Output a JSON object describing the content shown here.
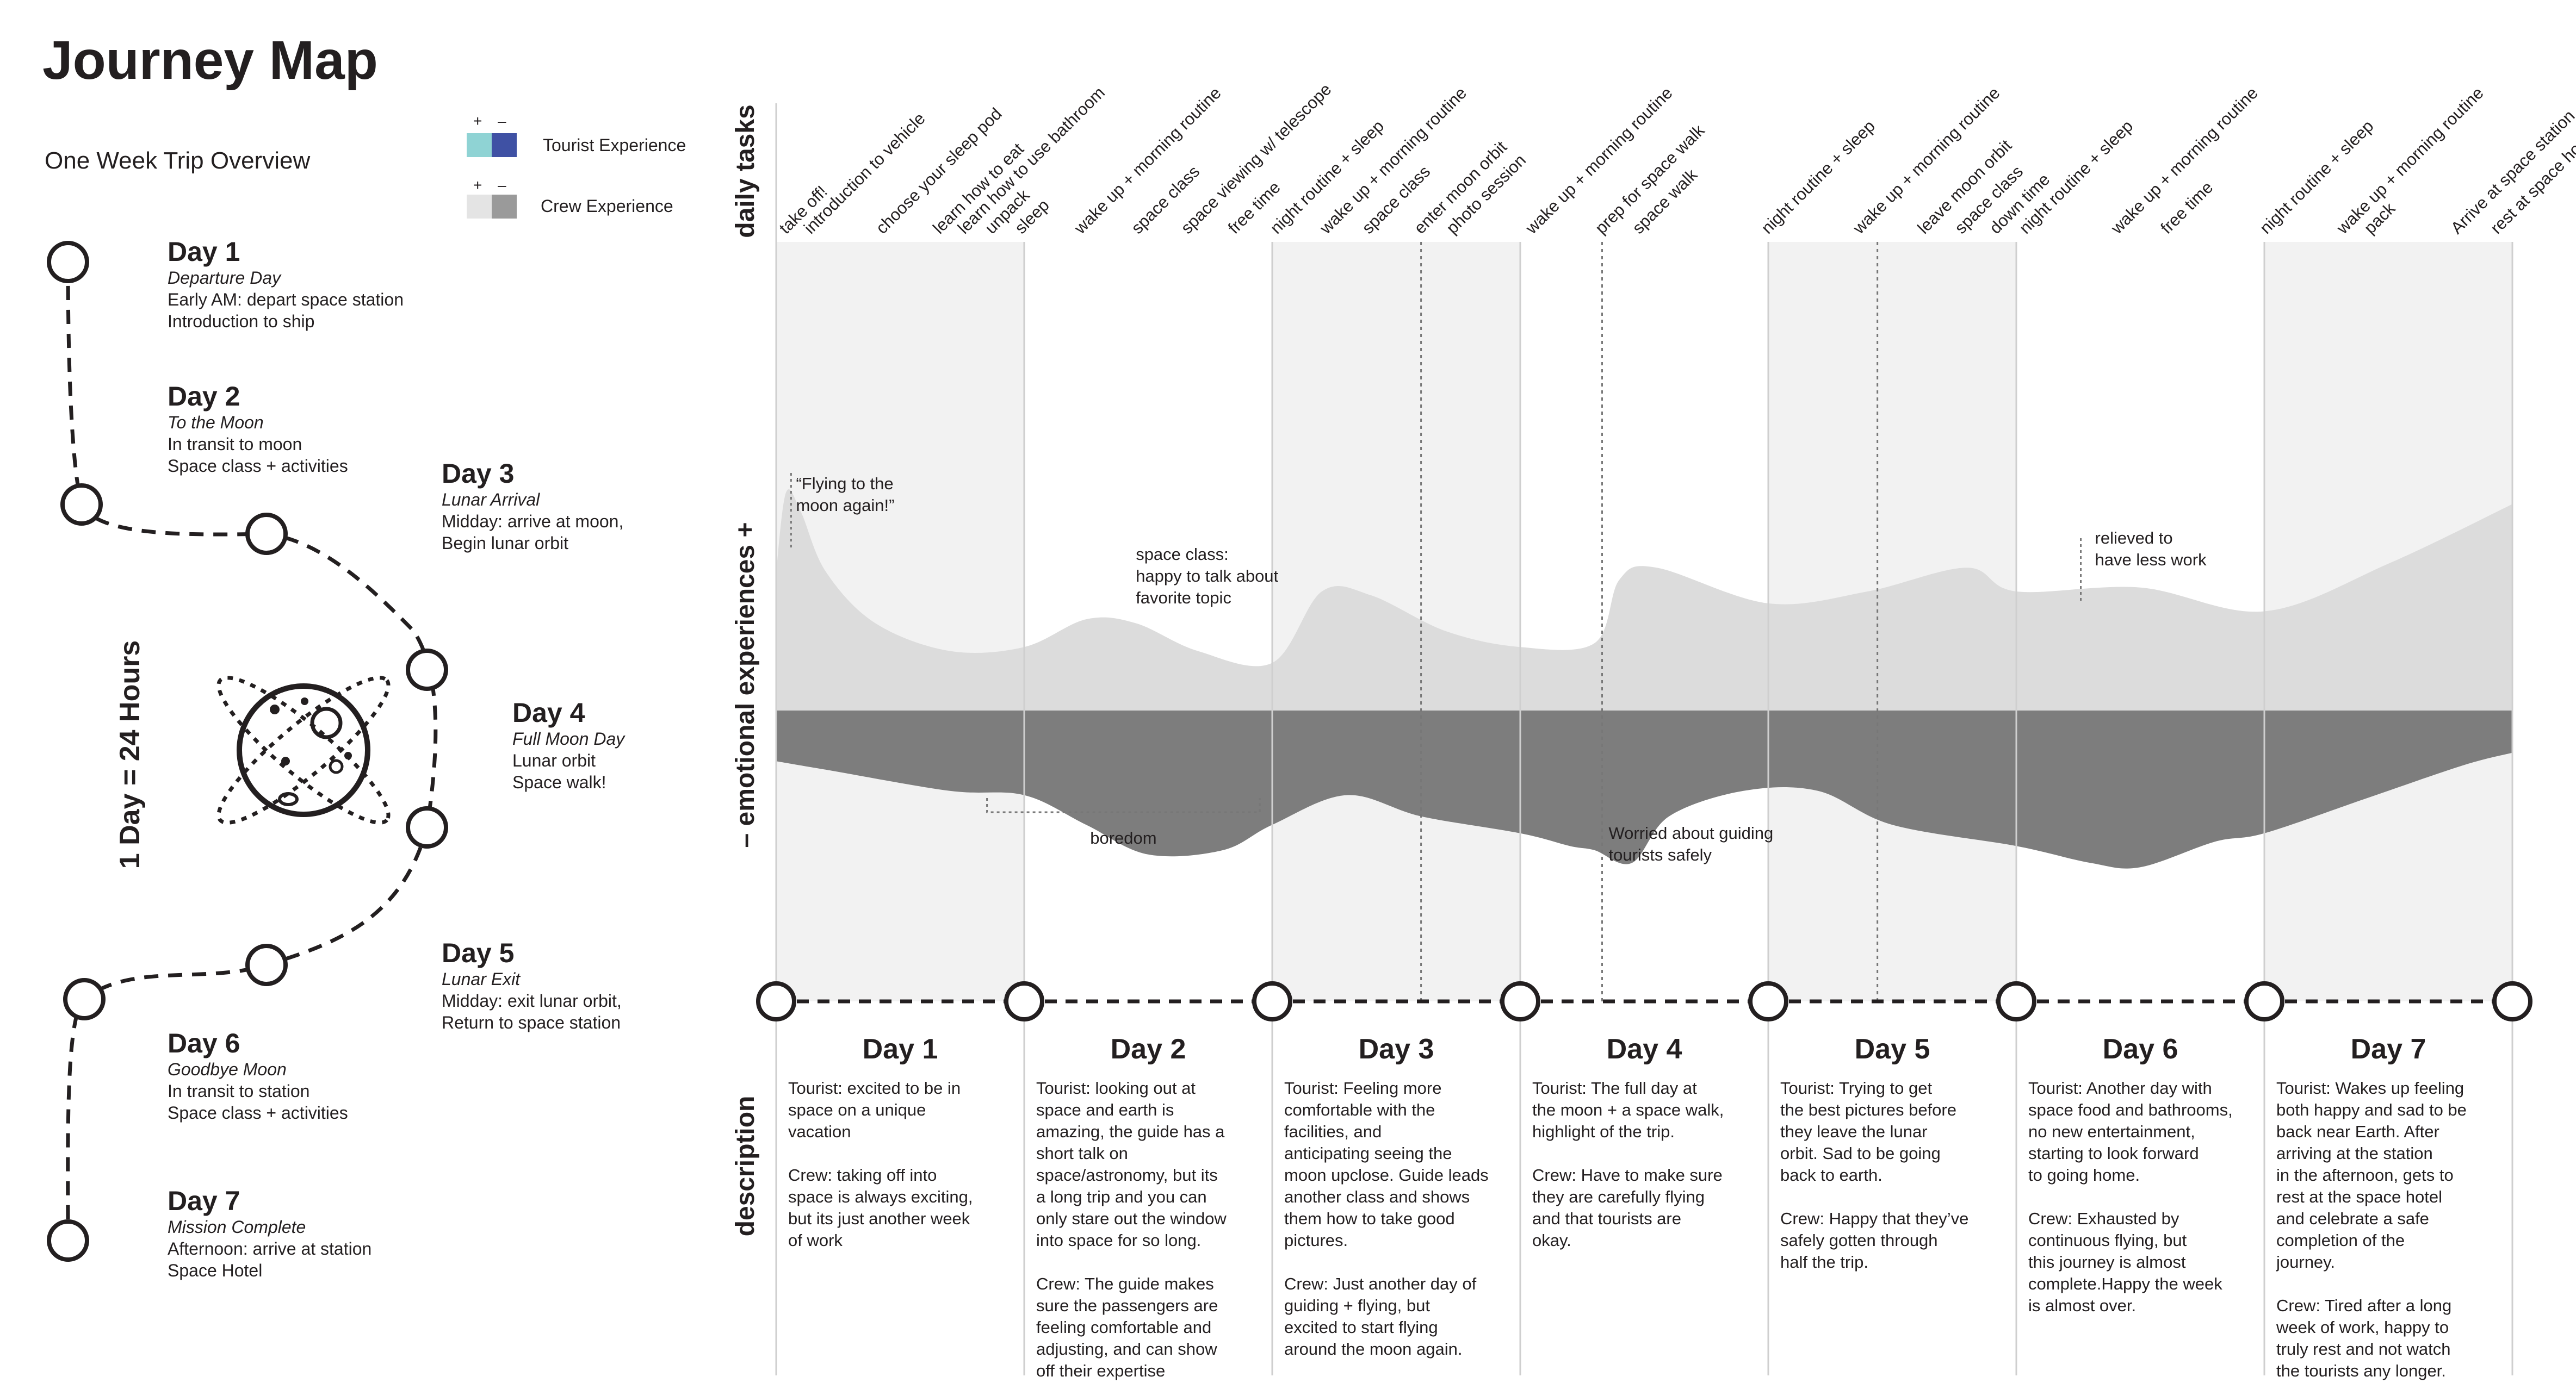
{
  "title": "Journey Map",
  "subtitle": "One Week Trip Overview",
  "legend": {
    "plus": "+",
    "minus": "–",
    "tourist": {
      "label": "Tourist Experience",
      "plus_color": "#8fd3d4",
      "minus_color": "#3f51a4"
    },
    "crew": {
      "label": "Crew Experience",
      "plus_color": "#e4e4e4",
      "minus_color": "#9a9a9a"
    }
  },
  "scale_label": "1 Day = 24 Hours",
  "timeline": [
    {
      "day": "Day 1",
      "name": "Departure Day",
      "lines": [
        "Early AM: depart space station",
        "Introduction to ship"
      ]
    },
    {
      "day": "Day 2",
      "name": "To the Moon",
      "lines": [
        "In transit to moon",
        "Space class + activities"
      ]
    },
    {
      "day": "Day 3",
      "name": "Lunar Arrival",
      "lines": [
        "Midday: arrive at moon,",
        "Begin lunar orbit"
      ]
    },
    {
      "day": "Day 4",
      "name": "Full Moon Day",
      "lines": [
        "Lunar orbit",
        "Space walk!"
      ]
    },
    {
      "day": "Day 5",
      "name": "Lunar Exit",
      "lines": [
        "Midday: exit lunar orbit,",
        "Return to space station"
      ]
    },
    {
      "day": "Day 6",
      "name": "Goodbye Moon",
      "lines": [
        "In transit to station",
        "Space class + activities"
      ]
    },
    {
      "day": "Day 7",
      "name": "Mission Complete",
      "lines": [
        "Afternoon: arrive at station",
        "Space Hotel"
      ]
    }
  ],
  "row_labels": {
    "tasks": "daily tasks",
    "emotions": "– emotional experiences +",
    "description": "description"
  },
  "tasks": [
    {
      "day": 0.04,
      "text": "take off!"
    },
    {
      "day": 0.14,
      "text": "introduction to vehicle"
    },
    {
      "day": 0.43,
      "text": "choose your sleep pod"
    },
    {
      "day": 0.66,
      "text": "learn how to eat"
    },
    {
      "day": 0.76,
      "text": "learn how to use bathroom"
    },
    {
      "day": 0.87,
      "text": "unpack"
    },
    {
      "day": 0.99,
      "text": "sleep"
    },
    {
      "day": 1.23,
      "text": "wake up + morning routine"
    },
    {
      "day": 1.46,
      "text": "space class"
    },
    {
      "day": 1.66,
      "text": "space viewing w/ telescope"
    },
    {
      "day": 1.85,
      "text": "free time"
    },
    {
      "day": 2.02,
      "text": "night routine + sleep"
    },
    {
      "day": 2.22,
      "text": "wake up + morning routine"
    },
    {
      "day": 2.39,
      "text": "space class"
    },
    {
      "day": 2.6,
      "text": "enter moon orbit"
    },
    {
      "day": 2.73,
      "text": "photo session"
    },
    {
      "day": 3.05,
      "text": "wake up + morning routine"
    },
    {
      "day": 3.33,
      "text": "prep for space walk"
    },
    {
      "day": 3.48,
      "text": "space walk"
    },
    {
      "day": 4.0,
      "text": "night routine + sleep"
    },
    {
      "day": 4.37,
      "text": "wake up + morning routine"
    },
    {
      "day": 4.63,
      "text": "leave moon orbit"
    },
    {
      "day": 4.78,
      "text": "space class"
    },
    {
      "day": 4.92,
      "text": "down time"
    },
    {
      "day": 5.04,
      "text": "night routine + sleep"
    },
    {
      "day": 5.41,
      "text": "wake up + morning routine"
    },
    {
      "day": 5.61,
      "text": "free time"
    },
    {
      "day": 6.01,
      "text": "night routine + sleep"
    },
    {
      "day": 6.32,
      "text": "wake up + morning routine"
    },
    {
      "day": 6.43,
      "text": "pack"
    },
    {
      "day": 6.78,
      "text": "Arrive at space station"
    },
    {
      "day": 6.94,
      "text": "rest at space hotel"
    }
  ],
  "chart_data": {
    "type": "area",
    "x_unit": "day",
    "xlim": [
      0,
      7
    ],
    "ylim": [
      -1,
      1
    ],
    "categories": [
      "Day 1",
      "Day 2",
      "Day 3",
      "Day 4",
      "Day 5",
      "Day 6",
      "Day 7"
    ],
    "series": [
      {
        "name": "Tourist Experience",
        "x": [
          0,
          0.04,
          0.1,
          0.2,
          0.4,
          0.7,
          1.0,
          1.25,
          1.45,
          1.7,
          2.0,
          2.2,
          2.4,
          2.7,
          3.0,
          3.3,
          3.4,
          3.55,
          4.0,
          4.4,
          4.8,
          5.0,
          5.5,
          6.0,
          6.5,
          7.0
        ],
        "values": [
          0.35,
          0.55,
          0.5,
          0.35,
          0.22,
          0.15,
          0.16,
          0.23,
          0.22,
          0.15,
          0.12,
          0.3,
          0.29,
          0.2,
          0.16,
          0.17,
          0.33,
          0.36,
          0.27,
          0.3,
          0.36,
          0.3,
          0.31,
          0.25,
          0.37,
          0.52
        ]
      },
      {
        "name": "Crew Experience",
        "x": [
          0,
          0.2,
          0.7,
          1.0,
          1.25,
          1.5,
          1.8,
          2.0,
          2.3,
          2.6,
          3.0,
          3.2,
          3.3,
          3.45,
          3.6,
          3.9,
          4.2,
          4.5,
          5.0,
          5.3,
          5.5,
          5.8,
          6.0,
          6.4,
          6.8,
          7.0
        ],
        "values": [
          -0.09,
          -0.11,
          -0.16,
          -0.17,
          -0.24,
          -0.31,
          -0.3,
          -0.24,
          -0.17,
          -0.22,
          -0.26,
          -0.29,
          -0.3,
          -0.33,
          -0.22,
          -0.16,
          -0.16,
          -0.24,
          -0.29,
          -0.33,
          -0.34,
          -0.28,
          -0.26,
          -0.18,
          -0.1,
          -0.07
        ]
      }
    ],
    "annotations": [
      {
        "day": 0.06,
        "text": "“Flying to the\nmoon again!”"
      },
      {
        "day": 1.45,
        "text": "space class:\nhappy to talk about\nfavorite topic"
      },
      {
        "day": [
          0.85,
          1.95
        ],
        "text": "boredom"
      },
      {
        "day": 3.33,
        "text": "Worried about guiding\ntourists safely"
      },
      {
        "day": 5.26,
        "text": "relieved to\nhave less work"
      }
    ]
  },
  "descriptions": [
    {
      "title": "Day 1",
      "text": "Tourist: excited to be in space on a unique vacation\n\nCrew: taking off into space is always exciting, but its just another week of work"
    },
    {
      "title": "Day 2",
      "text": "Tourist: looking out at space and earth is amazing, the guide has a short talk on space/astronomy, but its a long trip and you can only stare out the window into space for so long.\n\nCrew: The guide makes sure the passengers are feeling comfortable and adjusting, and can show off their expertise during “classes”."
    },
    {
      "title": "Day 3",
      "text": "Tourist: Feeling more comfortable with the facilities, and anticipating seeing the moon upclose. Guide leads another class and shows them how to take good pictures.\n\nCrew: Just another day of guiding + flying, but excited to start flying around the moon again."
    },
    {
      "title": "Day 4",
      "text": "Tourist: The full day at the moon + a space walk, highlight of the trip.\n\nCrew: Have to make sure they are carefully flying and that tourists are okay."
    },
    {
      "title": "Day 5",
      "text": "Tourist: Trying to get the best pictures before they leave the lunar orbit. Sad to be going back to earth.\n\nCrew: Happy that they’ve safely gotten through half the trip."
    },
    {
      "title": "Day 6",
      "text": "Tourist: Another day with space food and bathrooms, no new entertainment, starting to look forward to going home.\n\nCrew: Exhausted by continuous flying, but this journey is almost complete.Happy the week is almost over."
    },
    {
      "title": "Day 7",
      "text": "Tourist: Wakes up feeling both happy and sad to be back near Earth. After arriving at the station in the afternoon, gets to rest at the space hotel and celebrate a safe completion of the journey.\n\nCrew: Tired after a long week of work, happy to truly rest and not watch the tourists any longer."
    }
  ]
}
